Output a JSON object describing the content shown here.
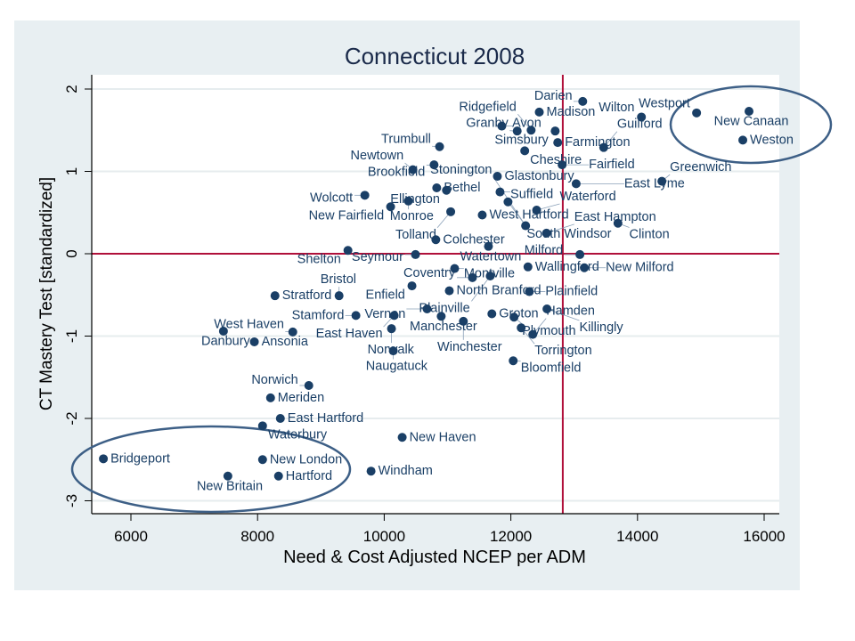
{
  "chart_data": {
    "type": "scatter",
    "title": "Connecticut 2008",
    "xlabel": "Need & Cost Adjusted NCEP per ADM",
    "ylabel": "CT Mastery Test [standardized]",
    "xlim": [
      5400,
      16200
    ],
    "ylim": [
      -3.1,
      2.2
    ],
    "xticks": [
      6000,
      8000,
      10000,
      12000,
      14000,
      16000
    ],
    "yticks": [
      -3,
      -2,
      -1,
      0,
      1,
      2
    ],
    "grid": "horizontal",
    "reference_lines": {
      "x": 12820,
      "y": 0
    },
    "colors": {
      "point": "#1a3f66",
      "refline": "#b0103a",
      "ellipse": "#3d5f86",
      "background": "#e8eff2"
    },
    "points": [
      {
        "name": "Darien",
        "x": 13135,
        "y": 1.85
      },
      {
        "name": "Madison",
        "x": 12449,
        "y": 1.72
      },
      {
        "name": "Wilton",
        "x": 14062,
        "y": 1.66
      },
      {
        "name": "Westport",
        "x": 14933,
        "y": 1.71
      },
      {
        "name": "New Canaan",
        "x": 15761,
        "y": 1.73
      },
      {
        "name": "Weston",
        "x": 15663,
        "y": 1.38
      },
      {
        "name": "Avon",
        "x": 11857,
        "y": 1.55
      },
      {
        "name": "Granby",
        "x": 12100,
        "y": 1.49
      },
      {
        "name": "Ridgefield",
        "x": 12320,
        "y": 1.5
      },
      {
        "name": "Simsbury",
        "x": 12700,
        "y": 1.49
      },
      {
        "name": "Farmington",
        "x": 12740,
        "y": 1.35
      },
      {
        "name": "Cheshire",
        "x": 12219,
        "y": 1.25
      },
      {
        "name": "Guilford",
        "x": 13466,
        "y": 1.29
      },
      {
        "name": "Trumbull",
        "x": 10874,
        "y": 1.3
      },
      {
        "name": "Brookfield",
        "x": 10787,
        "y": 1.08
      },
      {
        "name": "Newtown",
        "x": 10452,
        "y": 1.02
      },
      {
        "name": "Fairfield",
        "x": 12809,
        "y": 1.08
      },
      {
        "name": "Glastonbury",
        "x": 11787,
        "y": 0.94
      },
      {
        "name": "East Lyme",
        "x": 13031,
        "y": 0.85
      },
      {
        "name": "Greenwich",
        "x": 14385,
        "y": 0.88
      },
      {
        "name": "Bethel",
        "x": 10829,
        "y": 0.8
      },
      {
        "name": "Ellington",
        "x": 10983,
        "y": 0.77
      },
      {
        "name": "Suffield",
        "x": 11829,
        "y": 0.75
      },
      {
        "name": "Wolcott",
        "x": 9694,
        "y": 0.71
      },
      {
        "name": "Monroe",
        "x": 10382,
        "y": 0.64
      },
      {
        "name": "New Fairfield",
        "x": 10101,
        "y": 0.57
      },
      {
        "name": "South Windsor",
        "x": 11955,
        "y": 0.63
      },
      {
        "name": "Waterford",
        "x": 12407,
        "y": 0.53
      },
      {
        "name": "Tolland",
        "x": 11050,
        "y": 0.51
      },
      {
        "name": "West Hartford",
        "x": 11548,
        "y": 0.47
      },
      {
        "name": "Clinton",
        "x": 13691,
        "y": 0.37
      },
      {
        "name": "Stonington",
        "x": 12233,
        "y": 0.34
      },
      {
        "name": "East Hampton",
        "x": 12563,
        "y": 0.25
      },
      {
        "name": "Colchester",
        "x": 10815,
        "y": 0.17
      },
      {
        "name": "Shelton",
        "x": 9427,
        "y": 0.04
      },
      {
        "name": "Seymour",
        "x": 10494,
        "y": -0.01
      },
      {
        "name": "Watertown",
        "x": 11646,
        "y": 0.09
      },
      {
        "name": "Milford",
        "x": 13090,
        "y": -0.01
      },
      {
        "name": "Montville",
        "x": 11112,
        "y": -0.18
      },
      {
        "name": "Wallingford",
        "x": 12270,
        "y": -0.16
      },
      {
        "name": "New Milford",
        "x": 13160,
        "y": -0.17
      },
      {
        "name": "Coventry",
        "x": 11393,
        "y": -0.29
      },
      {
        "name": "Plainville",
        "x": 11674,
        "y": -0.27
      },
      {
        "name": "Enfield",
        "x": 10438,
        "y": -0.39
      },
      {
        "name": "North Branford",
        "x": 11028,
        "y": -0.45
      },
      {
        "name": "Plainfield",
        "x": 12292,
        "y": -0.46
      },
      {
        "name": "Stratford",
        "x": 8275,
        "y": -0.51
      },
      {
        "name": "Bristol",
        "x": 9287,
        "y": -0.51
      },
      {
        "name": "Killingly",
        "x": 12570,
        "y": -0.67
      },
      {
        "name": "Vernon",
        "x": 10677,
        "y": -0.67
      },
      {
        "name": "Stamford",
        "x": 9553,
        "y": -0.75
      },
      {
        "name": "East Haven",
        "x": 10157,
        "y": -0.75
      },
      {
        "name": "Manchester",
        "x": 10900,
        "y": -0.76
      },
      {
        "name": "Groton",
        "x": 11700,
        "y": -0.73
      },
      {
        "name": "Plymouth",
        "x": 12050,
        "y": -0.77
      },
      {
        "name": "Winchester",
        "x": 11250,
        "y": -0.82
      },
      {
        "name": "Torrington",
        "x": 12163,
        "y": -0.9
      },
      {
        "name": "Hamden",
        "x": 12346,
        "y": -0.98
      },
      {
        "name": "Norwalk",
        "x": 10115,
        "y": -0.91
      },
      {
        "name": "Danbury",
        "x": 7461,
        "y": -0.94
      },
      {
        "name": "West Haven",
        "x": 8556,
        "y": -0.95
      },
      {
        "name": "Ansonia",
        "x": 7949,
        "y": -1.07
      },
      {
        "name": "Naugatuck",
        "x": 10143,
        "y": -1.18
      },
      {
        "name": "Bloomfield",
        "x": 12037,
        "y": -1.3
      },
      {
        "name": "Norwich",
        "x": 8809,
        "y": -1.6
      },
      {
        "name": "Meriden",
        "x": 8205,
        "y": -1.75
      },
      {
        "name": "East Hartford",
        "x": 8360,
        "y": -2.0
      },
      {
        "name": "Waterbury",
        "x": 8079,
        "y": -2.09
      },
      {
        "name": "New Haven",
        "x": 10284,
        "y": -2.23
      },
      {
        "name": "Bridgeport",
        "x": 5565,
        "y": -2.49
      },
      {
        "name": "New London",
        "x": 8079,
        "y": -2.5
      },
      {
        "name": "Windham",
        "x": 9792,
        "y": -2.64
      },
      {
        "name": "New Britain",
        "x": 7531,
        "y": -2.7
      },
      {
        "name": "Hartford",
        "x": 8331,
        "y": -2.7
      }
    ]
  }
}
